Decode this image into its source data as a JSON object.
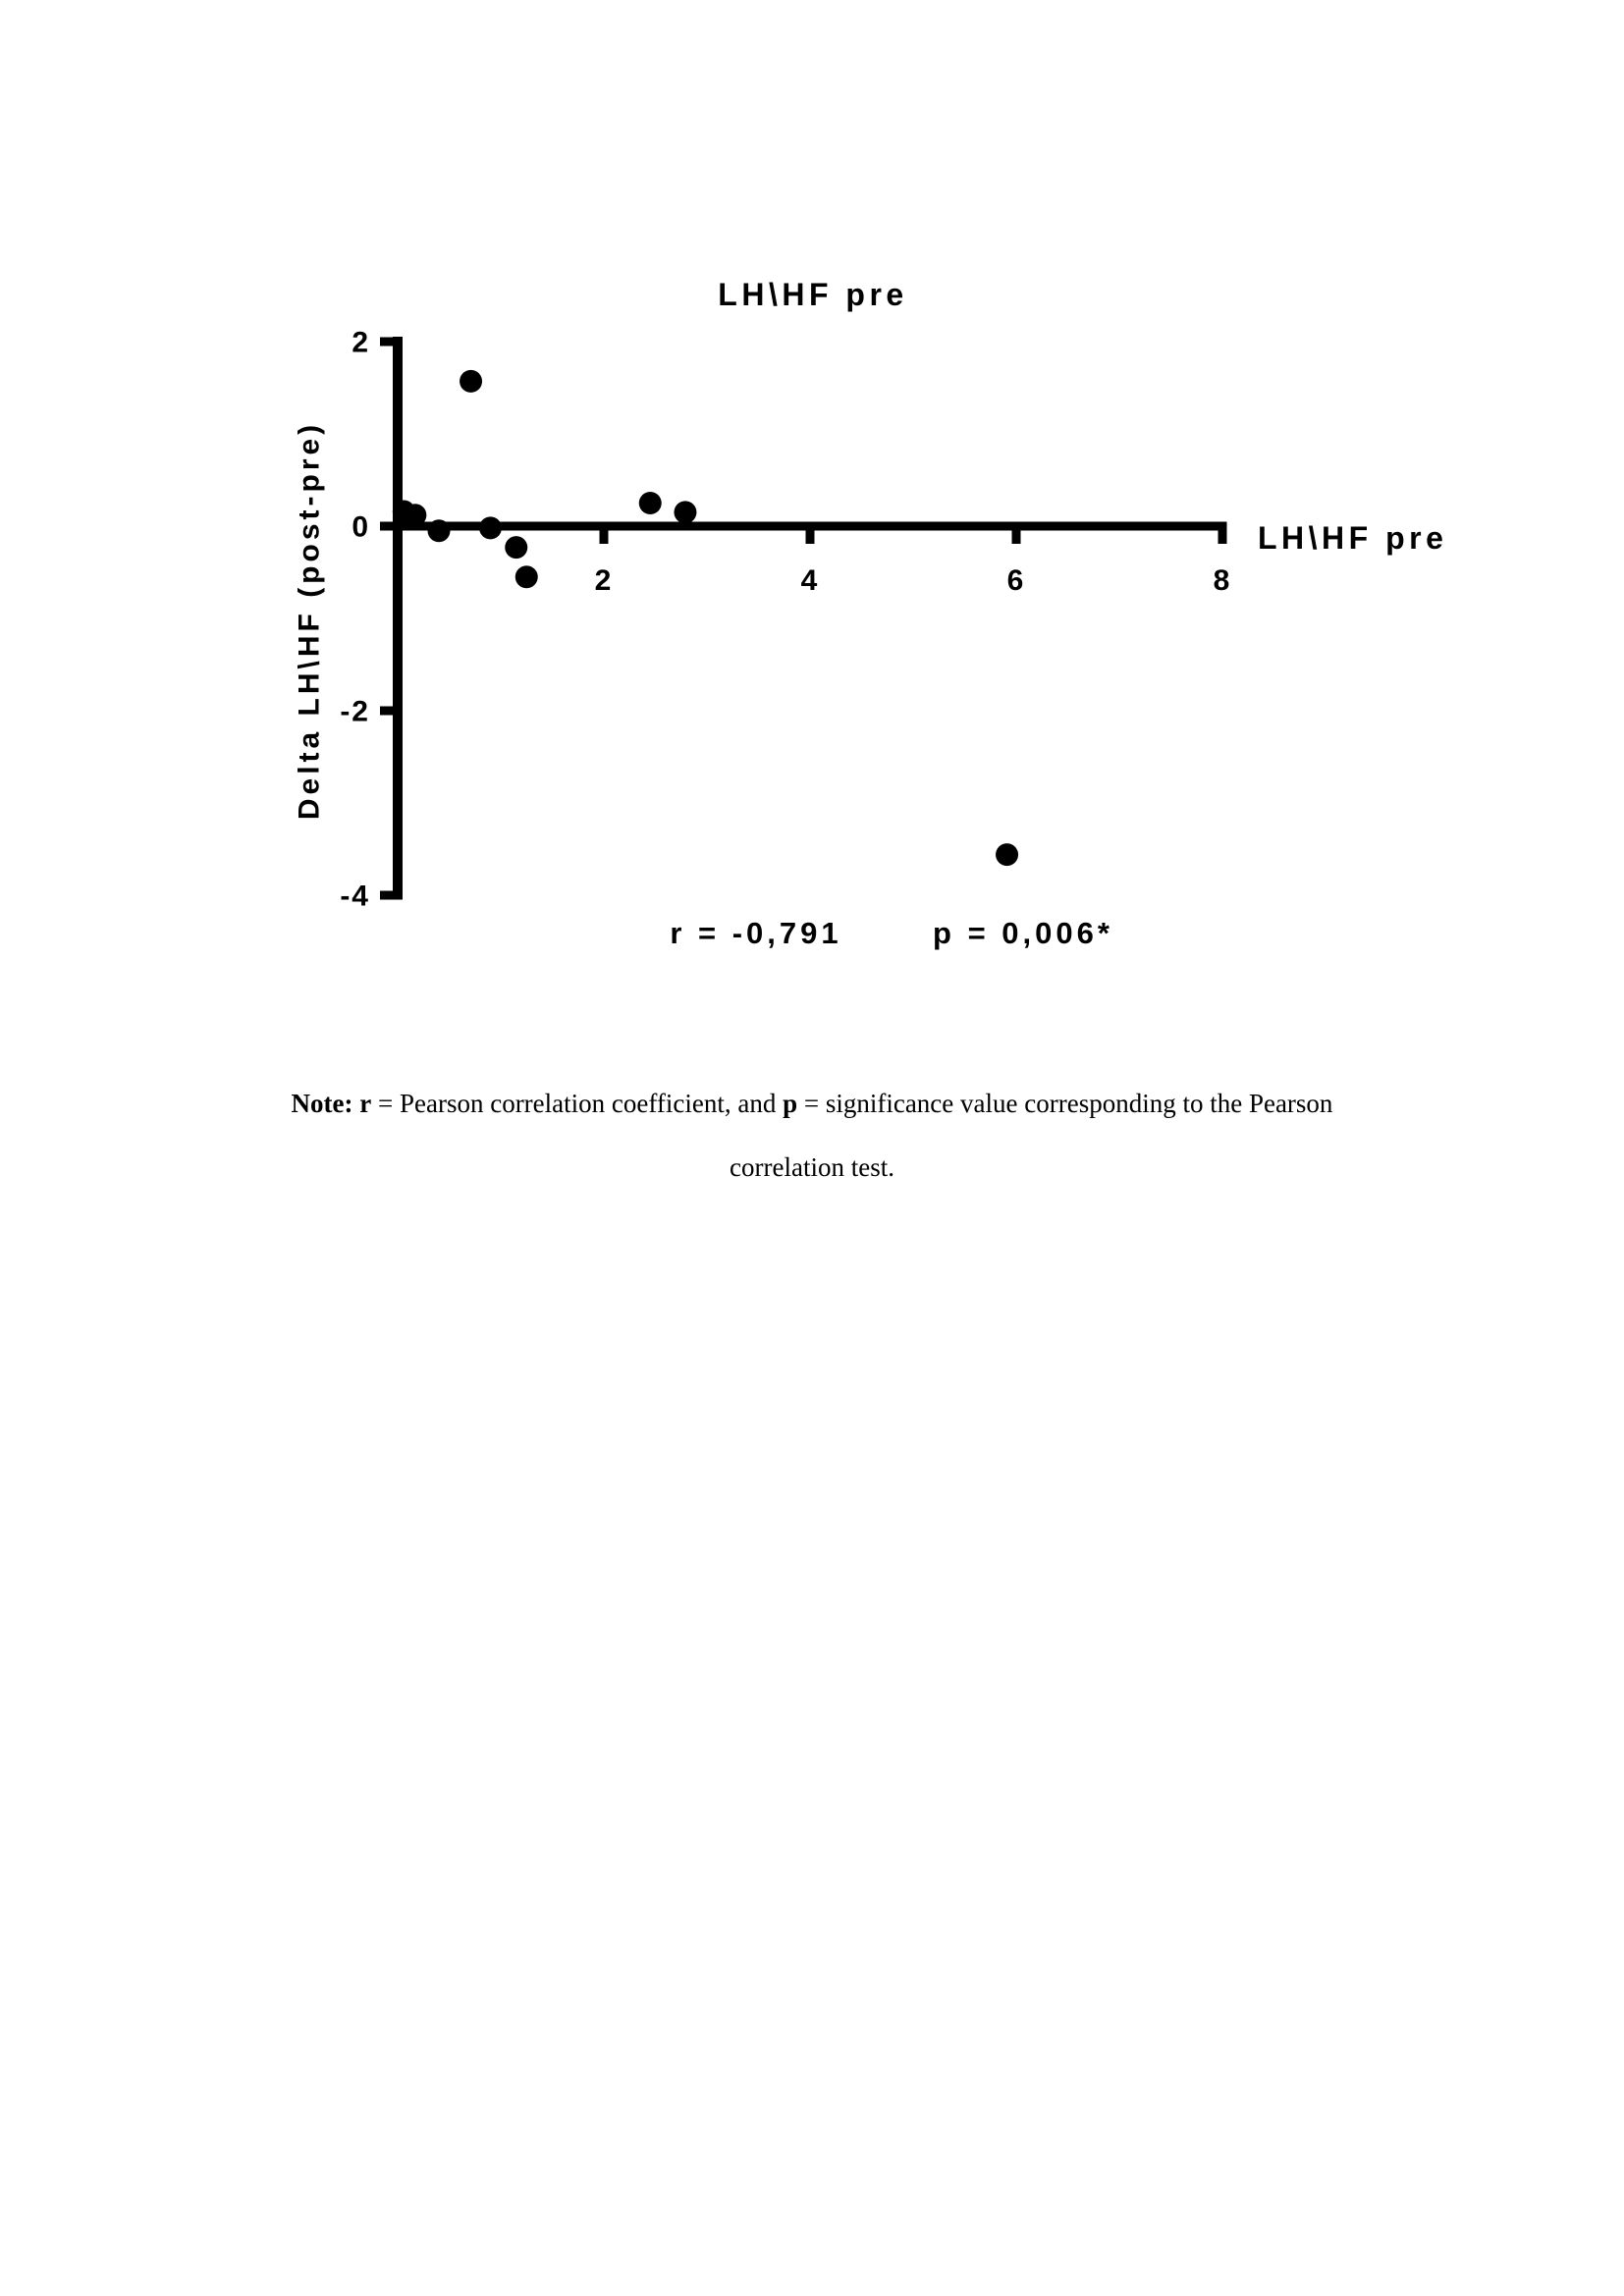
{
  "page": {
    "background": "#ffffff",
    "ink_color": "#000000"
  },
  "chart_data": {
    "type": "scatter",
    "title": "LH\\HF pre",
    "x_axis_right_label": "LH\\HF pre",
    "y_axis_label": "Delta LH\\HF (post-pre)",
    "x_range": [
      0,
      8
    ],
    "y_range": [
      -4,
      2
    ],
    "x_ticks": [
      2,
      4,
      6,
      8
    ],
    "y_ticks": [
      2,
      0,
      -2,
      -4
    ],
    "grid": false,
    "legend": "none",
    "marker_color": "#000000",
    "points": [
      {
        "x": 0.06,
        "y": 0.16
      },
      {
        "x": 0.17,
        "y": 0.12
      },
      {
        "x": 0.4,
        "y": -0.05
      },
      {
        "x": 0.71,
        "y": 1.57
      },
      {
        "x": 0.9,
        "y": -0.02
      },
      {
        "x": 1.15,
        "y": -0.23
      },
      {
        "x": 1.25,
        "y": -0.55
      },
      {
        "x": 2.45,
        "y": 0.25
      },
      {
        "x": 2.79,
        "y": 0.15
      },
      {
        "x": 5.91,
        "y": -3.56
      }
    ],
    "stats": {
      "r_label": "r = -0,791",
      "p_label": "p = 0,006*"
    }
  },
  "note": {
    "bold1": "Note:",
    "bold2": "r",
    "text1": "= Pearson correlation coefficient, and",
    "bold3": "p",
    "text2": "= significance value corresponding to the Pearson",
    "line2": "correlation test."
  }
}
